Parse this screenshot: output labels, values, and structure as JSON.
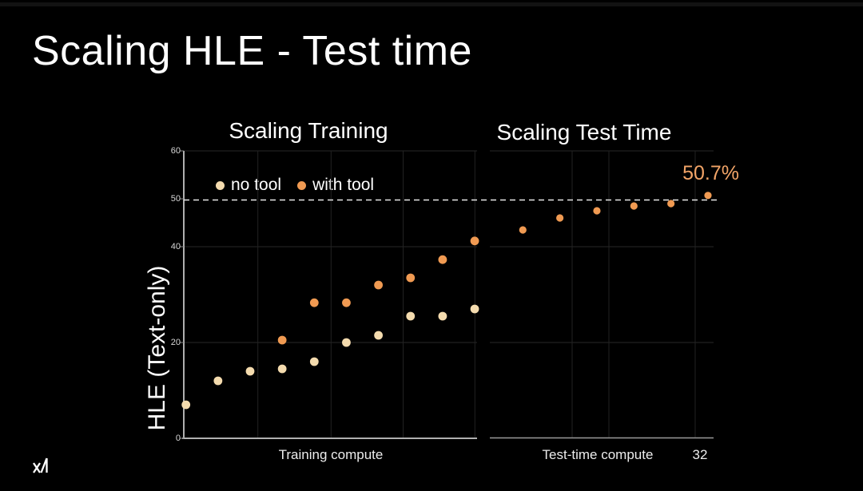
{
  "slide": {
    "title": "Scaling HLE - Test time",
    "logo": "xAI"
  },
  "chart": {
    "ylabel": "HLE (Text-only)",
    "yticks": [
      {
        "label": "60",
        "value": 60
      },
      {
        "label": "50",
        "value": 50
      },
      {
        "label": "40",
        "value": 40
      },
      {
        "label": "20",
        "value": 20
      },
      {
        "label": "0",
        "value": 0
      }
    ],
    "legend": [
      {
        "label": "no tool",
        "color": "#f4dbae"
      },
      {
        "label": "with tool",
        "color": "#f09a52"
      }
    ],
    "panels": {
      "left": {
        "title": "Scaling Training",
        "xlabel": "Training compute"
      },
      "right": {
        "title": "Scaling Test Time",
        "xlabel": "Test-time compute",
        "x_end_tick": "32"
      }
    },
    "annotation": "50.7%",
    "annotation_color": "#f2a467",
    "reference_line_value": 50,
    "colors": {
      "no_tool": "#f4dbae",
      "with_tool": "#f09a52",
      "dashed_line": "#e8e8e8",
      "axis": "#b0b0b0",
      "gridline": "#2a2a2a"
    }
  },
  "chart_data": [
    {
      "type": "scatter",
      "title": "Scaling Training",
      "xlabel": "Training compute",
      "ylabel": "HLE (Text-only)",
      "x_scale": "log (unlabeled, relative training compute steps 1-10)",
      "ylim": [
        0,
        60
      ],
      "yticks": [
        0,
        20,
        40,
        50,
        60
      ],
      "grid": true,
      "legend_position": "top-left",
      "reference_line_y": 50,
      "series": [
        {
          "name": "no tool",
          "color": "#f4dbae",
          "x": [
            1,
            2,
            3,
            4,
            5,
            6,
            7,
            8,
            9,
            10
          ],
          "y": [
            7,
            12,
            14,
            14.5,
            16,
            20,
            21.5,
            25.5,
            25.5,
            27
          ]
        },
        {
          "name": "with tool",
          "color": "#f09a52",
          "x": [
            4,
            5,
            6,
            7,
            8,
            9,
            10
          ],
          "y": [
            20.5,
            28.3,
            28.3,
            32,
            33.5,
            37.3,
            41.2
          ]
        }
      ]
    },
    {
      "type": "scatter",
      "title": "Scaling Test Time",
      "xlabel": "Test-time compute",
      "ylabel": "HLE (Text-only)",
      "x_scale": "log2",
      "xlim": [
        1,
        32
      ],
      "x_end_tick_label": "32",
      "ylim": [
        0,
        60
      ],
      "grid": true,
      "reference_line_y": 50,
      "annotation": {
        "text": "50.7%",
        "x": 32,
        "y": 50.7
      },
      "series": [
        {
          "name": "with tool",
          "color": "#f09a52",
          "x": [
            1,
            2,
            4,
            8,
            16,
            32
          ],
          "y": [
            43.5,
            46,
            47.5,
            48.5,
            49,
            50.7
          ]
        }
      ]
    }
  ]
}
